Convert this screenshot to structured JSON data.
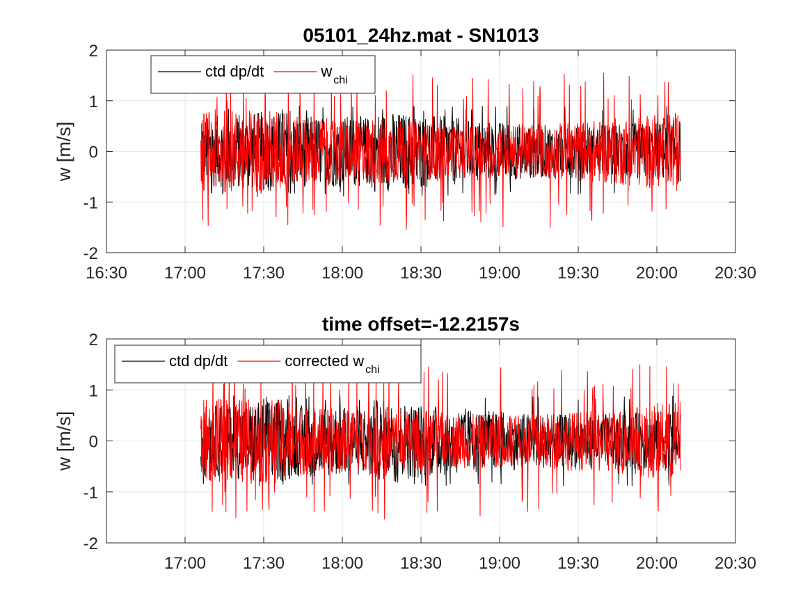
{
  "chart_data": [
    {
      "type": "line",
      "title": "05101_24hz.mat - SN1013",
      "xlabel": "",
      "ylabel": "w [m/s]",
      "xlim": [
        "16:30",
        "20:30"
      ],
      "ylim": [
        -2,
        2
      ],
      "x_ticks": [
        "16:30",
        "17:00",
        "17:30",
        "18:00",
        "18:30",
        "19:00",
        "19:30",
        "20:00",
        "20:30"
      ],
      "y_ticks": [
        "-2",
        "-1",
        "0",
        "1",
        "2"
      ],
      "grid": true,
      "legend_position": "top-left",
      "legend_orientation": "horizontal",
      "data_start": "17:06",
      "data_end": "20:09",
      "series": [
        {
          "name": "ctd dp/dt",
          "color": "#000000",
          "typical_amplitude": 0.8,
          "peak_min": -0.9,
          "peak_max": 0.9
        },
        {
          "name": "w",
          "name_subscript": "chi",
          "color": "#ff0000",
          "typical_amplitude": 0.8,
          "peak_min": -1.6,
          "peak_max": 1.55
        }
      ]
    },
    {
      "type": "line",
      "title": "time offset=-12.2157s",
      "xlabel": "",
      "ylabel": "w [m/s]",
      "xlim": [
        "16:30",
        "20:30"
      ],
      "ylim": [
        -2,
        2
      ],
      "x_ticks": [
        "",
        "17:00",
        "17:30",
        "18:00",
        "18:30",
        "19:00",
        "19:30",
        "20:00",
        "20:30"
      ],
      "y_ticks": [
        "-2",
        "-1",
        "0",
        "1",
        "2"
      ],
      "grid": true,
      "legend_position": "top-left",
      "legend_orientation": "horizontal",
      "data_start": "17:06",
      "data_end": "20:09",
      "series": [
        {
          "name": "ctd dp/dt",
          "color": "#000000",
          "typical_amplitude": 0.8,
          "peak_min": -0.9,
          "peak_max": 0.9
        },
        {
          "name": "corrected w",
          "name_subscript": "chi",
          "color": "#ff0000",
          "typical_amplitude": 0.8,
          "peak_min": -1.6,
          "peak_max": 1.5
        }
      ]
    }
  ]
}
